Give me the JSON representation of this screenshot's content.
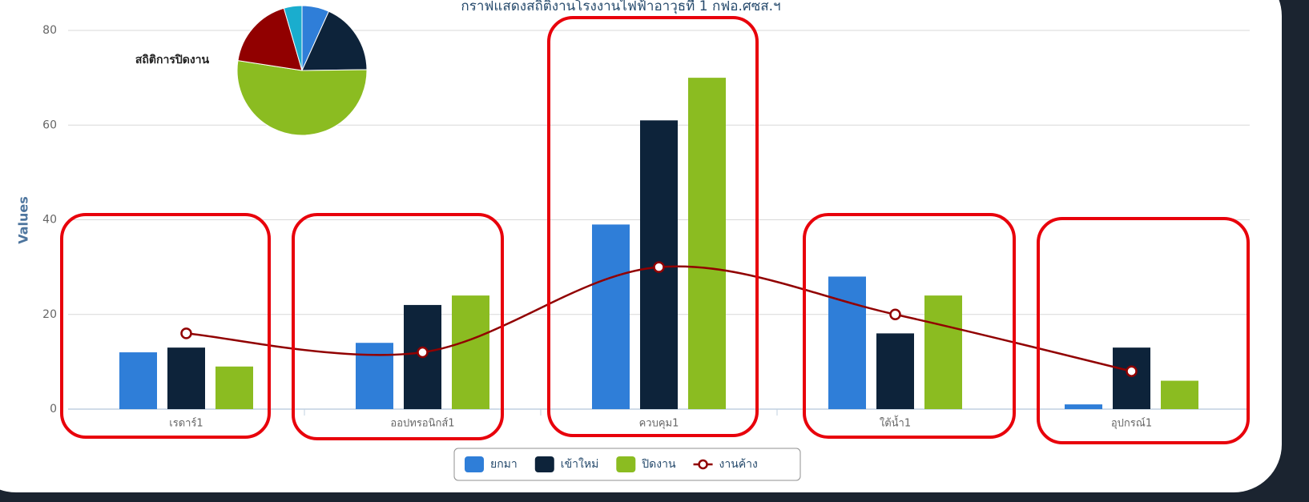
{
  "chart_data": [
    {
      "type": "bar",
      "title": "กราฟแสดงสถิติงานโรงงานไฟฟ้าอาวุธที่ 1 กฟอ.ศซส.ฯ",
      "y_label": "Values",
      "categories": [
        "เรดาร์1",
        "ออปทรอนิกส์1",
        "ควบคุม1",
        "ใต้น้ำ1",
        "อุปกรณ์1"
      ],
      "series": [
        {
          "name": "ยกมา",
          "color": "#2f7ed8",
          "values": [
            12,
            14,
            39,
            28,
            1
          ]
        },
        {
          "name": "เข้าใหม่",
          "color": "#0d233a",
          "values": [
            13,
            22,
            61,
            16,
            13
          ]
        },
        {
          "name": "ปิดงาน",
          "color": "#8bbc21",
          "values": [
            9,
            24,
            70,
            24,
            6
          ]
        },
        {
          "name": "งานค้าง",
          "color": "#910000",
          "type": "line",
          "values": [
            16,
            12,
            30,
            20,
            8
          ]
        }
      ],
      "ylim": [
        0,
        80
      ],
      "yticks": [
        0,
        20,
        40,
        60,
        80
      ],
      "grid": true,
      "legend": "bottom"
    },
    {
      "type": "pie",
      "title": "สถิติการปิดงาน",
      "values": [
        9,
        24,
        70,
        24,
        6
      ],
      "colors": [
        "#2f7ed8",
        "#0d233a",
        "#8bbc21",
        "#910000",
        "#1aadce"
      ]
    }
  ]
}
